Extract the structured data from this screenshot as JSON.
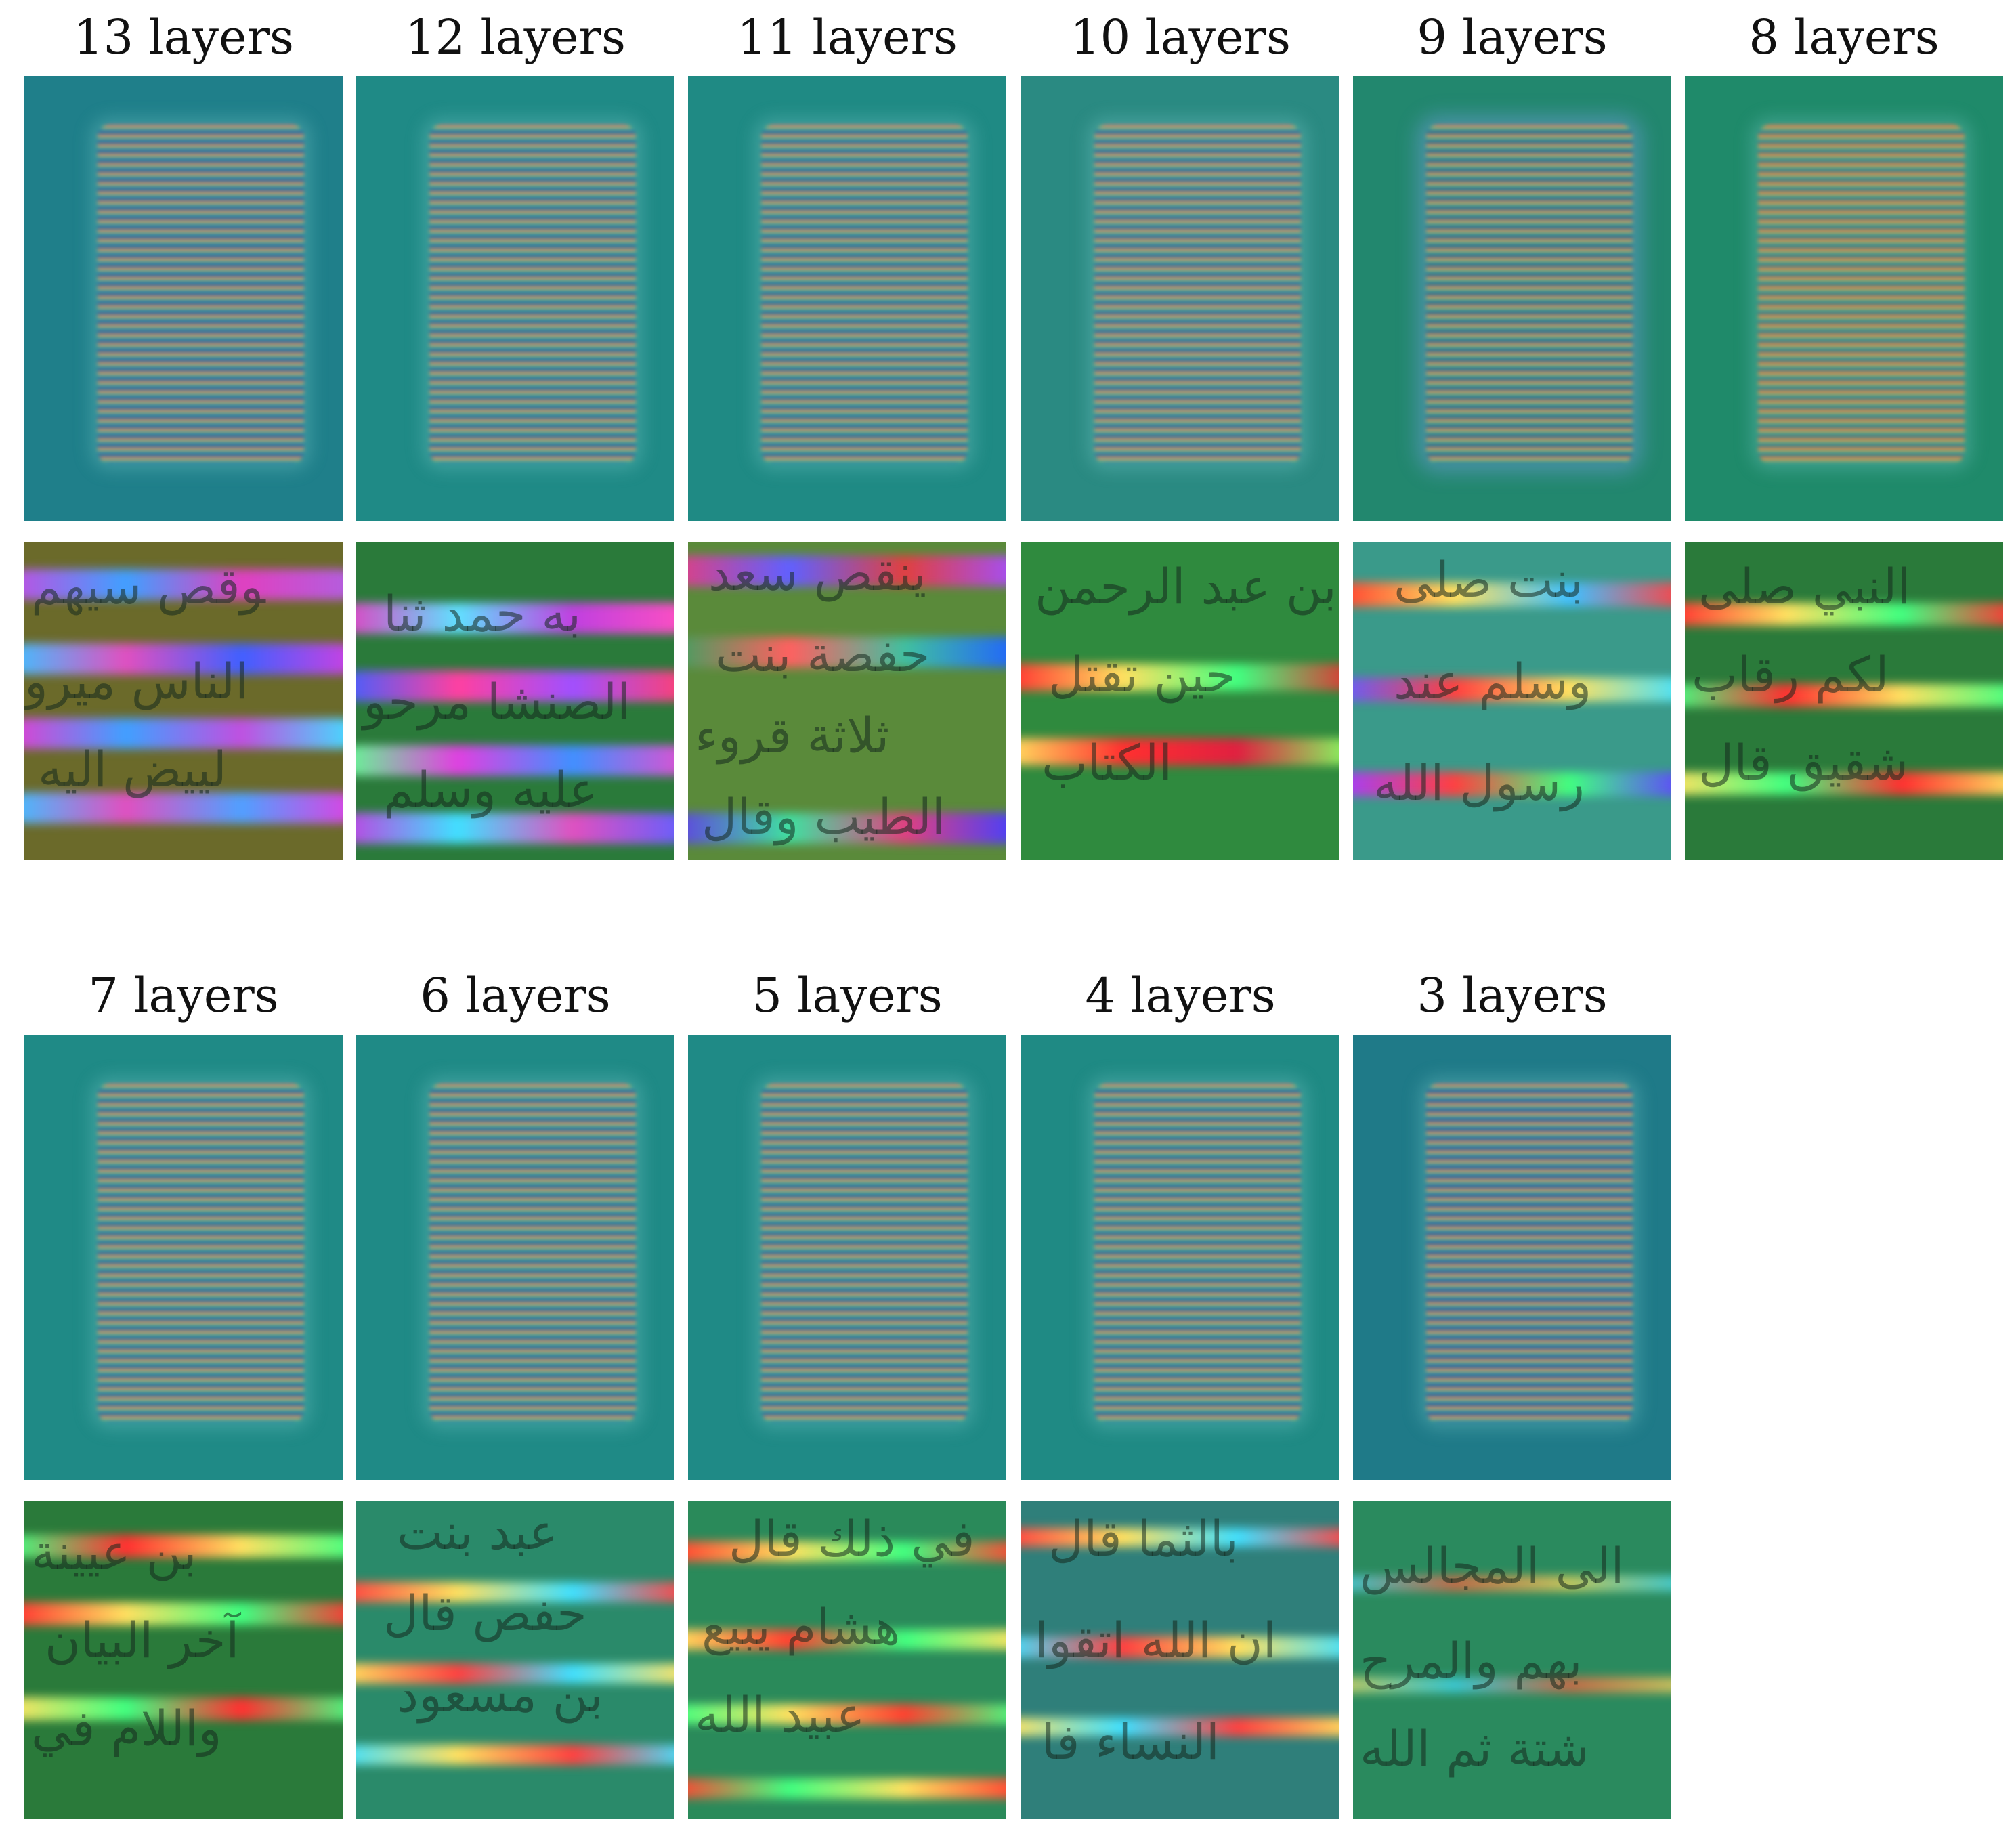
{
  "rows": [
    {
      "titles": [
        "13 layers",
        "12 layers",
        "11 layers",
        "10 layers",
        "9 layers",
        "8 layers"
      ]
    },
    {
      "titles": [
        "7 layers",
        "6 layers",
        "5 layers",
        "4 layers",
        "3 layers"
      ]
    }
  ],
  "colors": {
    "panel_bg_teal": "#1f8a86",
    "panel_bg_blue": "#1f7a88",
    "panel_bg_green": "#1f8a6e",
    "crop_bg_green": "#2a7a3a",
    "crop_bg_olive": "#6b6a2a"
  }
}
